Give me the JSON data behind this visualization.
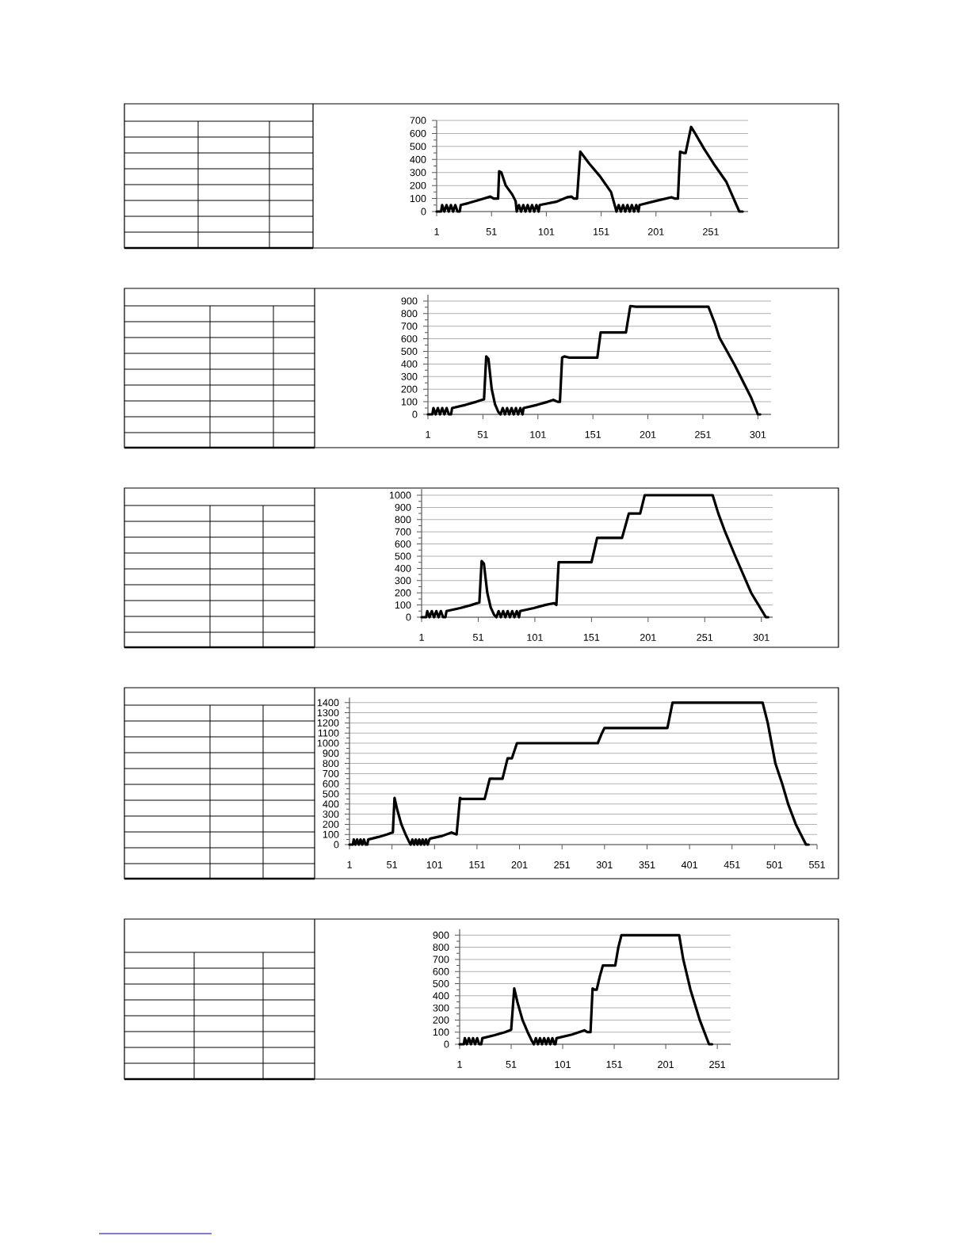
{
  "chart_data": [
    {
      "type": "line",
      "color": "#000000",
      "grid": "y",
      "xlim": [
        1,
        285
      ],
      "ylim": [
        0,
        700
      ],
      "xticks": [
        1,
        51,
        101,
        151,
        201,
        251
      ],
      "yticks": [
        0,
        100,
        200,
        300,
        400,
        500,
        600,
        700
      ],
      "x": [
        1,
        5,
        6,
        8,
        10,
        12,
        14,
        16,
        18,
        20,
        22,
        23,
        30,
        40,
        50,
        53,
        57,
        58,
        60,
        64,
        70,
        73,
        74,
        76,
        78,
        80,
        82,
        84,
        86,
        88,
        90,
        92,
        94,
        95,
        110,
        120,
        124,
        126,
        129,
        132,
        140,
        150,
        160,
        165,
        167,
        169,
        171,
        173,
        175,
        177,
        179,
        181,
        183,
        185,
        186,
        200,
        215,
        218,
        221,
        223,
        226,
        228,
        233,
        236,
        245,
        255,
        265,
        277,
        280
      ],
      "values": [
        0,
        0,
        50,
        0,
        50,
        0,
        50,
        0,
        50,
        0,
        0,
        50,
        65,
        90,
        115,
        100,
        100,
        310,
        300,
        200,
        130,
        80,
        0,
        50,
        0,
        50,
        0,
        50,
        0,
        50,
        0,
        50,
        0,
        50,
        75,
        110,
        115,
        100,
        100,
        460,
        370,
        270,
        150,
        0,
        50,
        0,
        50,
        0,
        50,
        0,
        50,
        0,
        50,
        0,
        50,
        80,
        110,
        100,
        100,
        460,
        450,
        450,
        650,
        610,
        480,
        350,
        230,
        0,
        0
      ]
    },
    {
      "type": "line",
      "color": "#000000",
      "grid": "y",
      "xlim": [
        1,
        313
      ],
      "ylim": [
        0,
        950
      ],
      "xticks": [
        1,
        51,
        101,
        151,
        201,
        251,
        301
      ],
      "yticks": [
        0,
        100,
        200,
        300,
        400,
        500,
        600,
        700,
        800,
        900
      ],
      "x": [
        1,
        5,
        6,
        8,
        10,
        12,
        14,
        16,
        18,
        20,
        22,
        23,
        35,
        45,
        50,
        52,
        54,
        56,
        59,
        62,
        65,
        67,
        69,
        71,
        73,
        75,
        77,
        79,
        81,
        83,
        85,
        87,
        88,
        100,
        110,
        115,
        119,
        121,
        123,
        125,
        130,
        150,
        155,
        158,
        175,
        181,
        185,
        190,
        250,
        256,
        262,
        266,
        280,
        295,
        301,
        303
      ],
      "values": [
        0,
        0,
        50,
        0,
        50,
        0,
        50,
        0,
        50,
        0,
        0,
        50,
        75,
        100,
        115,
        120,
        460,
        440,
        200,
        80,
        20,
        0,
        50,
        0,
        50,
        0,
        50,
        0,
        50,
        0,
        50,
        0,
        50,
        75,
        100,
        115,
        100,
        100,
        450,
        460,
        450,
        450,
        450,
        650,
        650,
        650,
        860,
        855,
        855,
        855,
        720,
        610,
        390,
        130,
        0,
        0
      ]
    },
    {
      "type": "line",
      "color": "#000000",
      "grid": "y",
      "xlim": [
        1,
        311
      ],
      "ylim": [
        0,
        1050
      ],
      "xticks": [
        1,
        51,
        101,
        151,
        201,
        251,
        301
      ],
      "yticks": [
        0,
        100,
        200,
        300,
        400,
        500,
        600,
        700,
        800,
        900,
        1000
      ],
      "x": [
        1,
        5,
        6,
        8,
        10,
        12,
        14,
        16,
        18,
        20,
        22,
        23,
        35,
        45,
        50,
        52,
        54,
        56,
        59,
        62,
        65,
        67,
        69,
        71,
        73,
        75,
        77,
        79,
        81,
        83,
        85,
        87,
        88,
        100,
        110,
        118,
        120,
        122,
        125,
        151,
        156,
        178,
        184,
        194,
        198,
        200,
        258,
        263,
        269,
        278,
        292,
        305,
        307
      ],
      "values": [
        0,
        0,
        50,
        0,
        50,
        0,
        50,
        0,
        50,
        0,
        0,
        50,
        75,
        100,
        115,
        120,
        460,
        440,
        200,
        80,
        20,
        0,
        50,
        0,
        50,
        0,
        50,
        0,
        50,
        0,
        50,
        0,
        50,
        75,
        100,
        115,
        100,
        450,
        450,
        450,
        650,
        650,
        850,
        850,
        1000,
        1000,
        1000,
        850,
        700,
        500,
        200,
        0,
        0
      ]
    },
    {
      "type": "line",
      "color": "#000000",
      "grid": "y",
      "xlim": [
        1,
        551
      ],
      "ylim": [
        0,
        1450
      ],
      "xticks": [
        1,
        51,
        101,
        151,
        201,
        251,
        301,
        351,
        401,
        451,
        501,
        551
      ],
      "yticks": [
        0,
        100,
        200,
        300,
        400,
        500,
        600,
        700,
        800,
        900,
        1000,
        1100,
        1200,
        1300,
        1400
      ],
      "x": [
        1,
        5,
        6,
        8,
        10,
        12,
        14,
        16,
        18,
        20,
        22,
        23,
        35,
        45,
        50,
        52,
        54,
        57,
        62,
        67,
        71,
        73,
        75,
        77,
        79,
        81,
        83,
        85,
        87,
        89,
        91,
        93,
        95,
        96,
        110,
        121,
        124,
        127,
        131,
        133,
        160,
        166,
        181,
        187,
        192,
        198,
        200,
        293,
        298,
        301,
        375,
        381,
        383,
        487,
        493,
        502,
        510,
        517,
        526,
        538,
        541
      ],
      "values": [
        0,
        0,
        50,
        0,
        50,
        0,
        50,
        0,
        50,
        0,
        0,
        50,
        75,
        100,
        115,
        120,
        460,
        350,
        200,
        100,
        30,
        0,
        50,
        0,
        50,
        0,
        50,
        0,
        50,
        0,
        50,
        0,
        50,
        60,
        85,
        120,
        110,
        100,
        460,
        450,
        450,
        650,
        650,
        850,
        850,
        1000,
        1000,
        1000,
        1100,
        1150,
        1150,
        1400,
        1400,
        1400,
        1200,
        800,
        600,
        400,
        200,
        0,
        0
      ]
    },
    {
      "type": "line",
      "color": "#000000",
      "grid": "y",
      "xlim": [
        1,
        264
      ],
      "ylim": [
        0,
        950
      ],
      "xticks": [
        1,
        51,
        101,
        151,
        201,
        251
      ],
      "yticks": [
        0,
        100,
        200,
        300,
        400,
        500,
        600,
        700,
        800,
        900
      ],
      "x": [
        1,
        5,
        6,
        8,
        10,
        12,
        14,
        16,
        18,
        20,
        22,
        23,
        35,
        45,
        51,
        54,
        57,
        62,
        67,
        71,
        73,
        75,
        77,
        79,
        81,
        83,
        85,
        87,
        89,
        91,
        93,
        94,
        95,
        110,
        122,
        125,
        128,
        130,
        132,
        134,
        137,
        140,
        152,
        155,
        158,
        214,
        218,
        225,
        234,
        243,
        246
      ],
      "values": [
        0,
        0,
        50,
        0,
        50,
        0,
        50,
        0,
        50,
        0,
        0,
        50,
        75,
        100,
        120,
        460,
        350,
        200,
        100,
        30,
        0,
        50,
        0,
        50,
        0,
        50,
        0,
        50,
        0,
        50,
        0,
        0,
        50,
        80,
        115,
        100,
        100,
        460,
        450,
        450,
        560,
        650,
        650,
        800,
        900,
        900,
        700,
        450,
        200,
        0,
        0
      ]
    }
  ]
}
